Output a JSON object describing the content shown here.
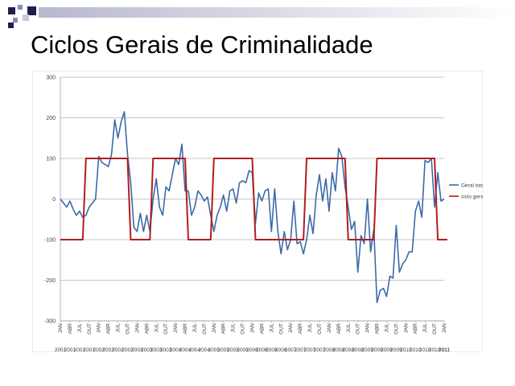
{
  "slide": {
    "title": "Ciclos Gerais de Criminalidade",
    "colors": {
      "deco_dark": "#1c1f4e",
      "deco_mid": "#8a8cb2",
      "deco_light": "#c8c9dc",
      "bar_fade_from": "#b7b8cf",
      "bar_fade_to": "#ffffff"
    }
  },
  "chart_data": {
    "type": "line",
    "title": "",
    "xlabel": "",
    "ylabel": "",
    "ylim": [
      -300,
      300
    ],
    "yticks": [
      300,
      200,
      100,
      0,
      -100,
      -200,
      -300
    ],
    "grid": true,
    "legend": "right",
    "month_cycle": [
      "JAN",
      "ABR",
      "JUL",
      "OUT"
    ],
    "year_labels": [
      "2001",
      "2001",
      "2001",
      "2001",
      "2002",
      "2002",
      "2002",
      "2002",
      "2003",
      "2003",
      "2003",
      "2003",
      "2004",
      "2004",
      "2004",
      "2004",
      "2005",
      "2005",
      "2005",
      "2005",
      "2006",
      "2006",
      "2006",
      "2006",
      "2007",
      "2007",
      "2007",
      "2007",
      "2008",
      "2008",
      "2008",
      "2008",
      "2009",
      "2009",
      "2009",
      "2009",
      "2010",
      "2010",
      "2010",
      "2010",
      "2011",
      "2011",
      "2011"
    ],
    "series": [
      {
        "name": "Geral total",
        "color": "#3b6aa8",
        "values": [
          0,
          -10,
          -20,
          -5,
          -25,
          -40,
          -30,
          -45,
          -40,
          -20,
          -10,
          0,
          105,
          90,
          85,
          80,
          110,
          195,
          150,
          190,
          215,
          110,
          40,
          -70,
          -80,
          -35,
          -80,
          -40,
          -80,
          0,
          50,
          -20,
          -40,
          30,
          20,
          60,
          100,
          85,
          135,
          20,
          20,
          -40,
          -20,
          20,
          10,
          -5,
          5,
          -40,
          -80,
          -40,
          -20,
          10,
          -30,
          20,
          25,
          -10,
          40,
          45,
          40,
          70,
          65,
          -60,
          15,
          -5,
          20,
          25,
          -80,
          25,
          -80,
          -135,
          -80,
          -125,
          -100,
          -5,
          -110,
          -105,
          -135,
          -100,
          -40,
          -85,
          10,
          60,
          -5,
          50,
          -30,
          65,
          20,
          125,
          105,
          30,
          -20,
          -75,
          -55,
          -180,
          -90,
          -110,
          0,
          -130,
          -75,
          -255,
          -225,
          -220,
          -240,
          -190,
          -195,
          -65,
          -180,
          -160,
          -150,
          -130,
          -130,
          -30,
          -5,
          -45,
          95,
          90,
          100,
          -20,
          65,
          -5,
          0
        ]
      },
      {
        "name": "ciclo geral",
        "color": "#b01e1e",
        "values": [
          -100,
          -100,
          -100,
          -100,
          -100,
          -100,
          -100,
          -100,
          100,
          100,
          100,
          100,
          100,
          100,
          100,
          100,
          100,
          100,
          100,
          100,
          100,
          100,
          -100,
          -100,
          -100,
          -100,
          -100,
          -100,
          -100,
          100,
          100,
          100,
          100,
          100,
          100,
          100,
          100,
          100,
          100,
          100,
          -100,
          -100,
          -100,
          -100,
          -100,
          -100,
          -100,
          -100,
          100,
          100,
          100,
          100,
          100,
          100,
          100,
          100,
          100,
          100,
          100,
          100,
          100,
          -100,
          -100,
          -100,
          -100,
          -100,
          -100,
          -100,
          -100,
          -100,
          -100,
          -100,
          -100,
          -100,
          -100,
          -100,
          -100,
          100,
          100,
          100,
          100,
          100,
          100,
          100,
          100,
          100,
          100,
          100,
          100,
          100,
          -100,
          -100,
          -100,
          -100,
          -100,
          -100,
          -100,
          -100,
          -100,
          100,
          100,
          100,
          100,
          100,
          100,
          100,
          100,
          100,
          100,
          100,
          100,
          100,
          100,
          100,
          100,
          100,
          100,
          100,
          -100,
          -100,
          -100,
          -100
        ]
      }
    ]
  }
}
